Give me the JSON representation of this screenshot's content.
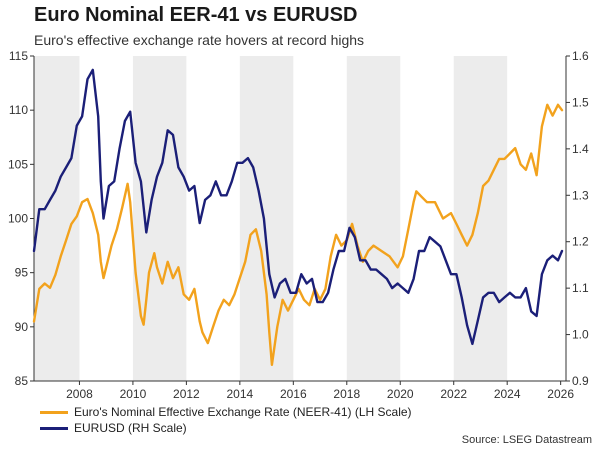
{
  "header": {
    "title": "Euro Nominal EER-41 vs EURUSD",
    "subtitle": "Euro's effective exchange rate hovers at record highs"
  },
  "source": "Source: LSEG Datastream",
  "colors": {
    "neer": "#f2a21d",
    "eurusd": "#1b1f78",
    "band": "#ececec",
    "axis": "#333333"
  },
  "chart_data": {
    "type": "line",
    "title": "Euro Nominal EER-41 vs EURUSD",
    "subtitle": "Euro's effective exchange rate hovers at record highs",
    "x_range": [
      2006.3,
      2026.2
    ],
    "x_ticks": [
      "2008",
      "2010",
      "2012",
      "2014",
      "2016",
      "2018",
      "2020",
      "2022",
      "2024",
      "2026"
    ],
    "x_tick_values": [
      2008,
      2010,
      2012,
      2014,
      2016,
      2018,
      2020,
      2022,
      2024,
      2026
    ],
    "shaded_year_bands": [
      [
        2006.3,
        2008
      ],
      [
        2010,
        2012
      ],
      [
        2014,
        2016
      ],
      [
        2018,
        2020
      ],
      [
        2022,
        2024
      ]
    ],
    "y_left": {
      "range": [
        85,
        115
      ],
      "ticks": [
        "85",
        "90",
        "95",
        "100",
        "105",
        "110",
        "115"
      ],
      "tick_values": [
        85,
        90,
        95,
        100,
        105,
        110,
        115
      ]
    },
    "y_right": {
      "range": [
        0.9,
        1.6
      ],
      "ticks": [
        "0.9",
        "1.0",
        "1.1",
        "1.2",
        "1.3",
        "1.4",
        "1.5",
        "1.6"
      ],
      "tick_values": [
        0.9,
        1.0,
        1.1,
        1.2,
        1.3,
        1.4,
        1.5,
        1.6
      ]
    },
    "series": [
      {
        "name": "Euro's Nominal Effective Exchange Rate (NEER-41) (LH Scale)",
        "axis": "left",
        "x": [
          2006.3,
          2006.5,
          2006.7,
          2006.9,
          2007.1,
          2007.3,
          2007.5,
          2007.7,
          2007.9,
          2008.1,
          2008.3,
          2008.5,
          2008.7,
          2008.8,
          2008.9,
          2009.0,
          2009.2,
          2009.4,
          2009.6,
          2009.8,
          2009.9,
          2010.1,
          2010.3,
          2010.4,
          2010.5,
          2010.6,
          2010.8,
          2010.9,
          2011.1,
          2011.3,
          2011.5,
          2011.7,
          2011.9,
          2012.1,
          2012.3,
          2012.5,
          2012.6,
          2012.8,
          2013.0,
          2013.2,
          2013.4,
          2013.6,
          2013.8,
          2014.0,
          2014.2,
          2014.4,
          2014.6,
          2014.8,
          2015.0,
          2015.1,
          2015.2,
          2015.4,
          2015.6,
          2015.8,
          2016.0,
          2016.2,
          2016.4,
          2016.6,
          2016.8,
          2017.0,
          2017.2,
          2017.4,
          2017.6,
          2017.8,
          2018.0,
          2018.2,
          2018.4,
          2018.6,
          2018.8,
          2019.0,
          2019.3,
          2019.6,
          2019.9,
          2020.1,
          2020.3,
          2020.5,
          2020.6,
          2020.8,
          2021.0,
          2021.3,
          2021.6,
          2021.9,
          2022.1,
          2022.3,
          2022.5,
          2022.7,
          2022.9,
          2023.1,
          2023.3,
          2023.5,
          2023.7,
          2023.9,
          2024.1,
          2024.3,
          2024.5,
          2024.7,
          2024.9,
          2025.1,
          2025.3,
          2025.5,
          2025.7,
          2025.9,
          2026.05
        ],
        "values": [
          90.5,
          93.5,
          94.0,
          93.6,
          94.8,
          96.5,
          98.0,
          99.5,
          100.2,
          101.5,
          101.8,
          100.5,
          98.5,
          96.0,
          94.5,
          95.5,
          97.5,
          99.0,
          101.0,
          103.2,
          101.5,
          95.0,
          91.0,
          90.2,
          92.5,
          95.0,
          96.8,
          95.5,
          94.0,
          96.0,
          94.5,
          95.5,
          93.0,
          92.5,
          93.5,
          90.5,
          89.5,
          88.5,
          90.0,
          91.5,
          92.5,
          92.0,
          93.0,
          94.5,
          96.0,
          98.5,
          99.0,
          97.0,
          93.0,
          89.5,
          86.5,
          90.0,
          92.5,
          91.5,
          92.5,
          93.5,
          92.5,
          92.0,
          93.5,
          92.5,
          93.5,
          96.5,
          98.5,
          97.5,
          98.0,
          99.5,
          97.5,
          96.0,
          97.0,
          97.5,
          97.0,
          96.5,
          95.5,
          96.5,
          99.0,
          101.5,
          102.5,
          102.0,
          101.5,
          101.5,
          100.0,
          100.5,
          99.5,
          98.5,
          97.5,
          98.5,
          100.5,
          103.0,
          103.5,
          104.5,
          105.5,
          105.5,
          106.0,
          106.5,
          105.0,
          104.5,
          106.0,
          104.0,
          108.5,
          110.5,
          109.5,
          110.5,
          110.0
        ]
      },
      {
        "name": "EURUSD (RH Scale)",
        "axis": "right",
        "x": [
          2006.3,
          2006.5,
          2006.7,
          2006.9,
          2007.1,
          2007.3,
          2007.5,
          2007.7,
          2007.9,
          2008.1,
          2008.3,
          2008.5,
          2008.7,
          2008.8,
          2008.9,
          2009.1,
          2009.3,
          2009.5,
          2009.7,
          2009.9,
          2010.1,
          2010.3,
          2010.5,
          2010.7,
          2010.9,
          2011.1,
          2011.3,
          2011.5,
          2011.7,
          2011.9,
          2012.1,
          2012.3,
          2012.5,
          2012.7,
          2012.9,
          2013.1,
          2013.3,
          2013.5,
          2013.7,
          2013.9,
          2014.1,
          2014.3,
          2014.5,
          2014.7,
          2014.9,
          2015.1,
          2015.3,
          2015.5,
          2015.7,
          2015.9,
          2016.1,
          2016.3,
          2016.5,
          2016.7,
          2016.9,
          2017.1,
          2017.3,
          2017.5,
          2017.7,
          2017.9,
          2018.1,
          2018.3,
          2018.5,
          2018.7,
          2018.9,
          2019.1,
          2019.3,
          2019.5,
          2019.7,
          2019.9,
          2020.1,
          2020.3,
          2020.5,
          2020.7,
          2020.9,
          2021.1,
          2021.3,
          2021.5,
          2021.7,
          2021.9,
          2022.1,
          2022.3,
          2022.5,
          2022.7,
          2022.9,
          2023.1,
          2023.3,
          2023.5,
          2023.7,
          2023.9,
          2024.1,
          2024.3,
          2024.5,
          2024.7,
          2024.9,
          2025.1,
          2025.3,
          2025.5,
          2025.7,
          2025.9,
          2026.05
        ],
        "values": [
          1.18,
          1.27,
          1.27,
          1.29,
          1.31,
          1.34,
          1.36,
          1.38,
          1.45,
          1.47,
          1.55,
          1.57,
          1.47,
          1.33,
          1.25,
          1.32,
          1.33,
          1.4,
          1.46,
          1.48,
          1.37,
          1.33,
          1.22,
          1.29,
          1.34,
          1.37,
          1.44,
          1.43,
          1.36,
          1.34,
          1.31,
          1.32,
          1.24,
          1.29,
          1.3,
          1.33,
          1.3,
          1.3,
          1.33,
          1.37,
          1.37,
          1.38,
          1.36,
          1.31,
          1.25,
          1.13,
          1.08,
          1.11,
          1.12,
          1.09,
          1.09,
          1.13,
          1.11,
          1.12,
          1.07,
          1.07,
          1.09,
          1.14,
          1.18,
          1.18,
          1.23,
          1.21,
          1.16,
          1.16,
          1.14,
          1.14,
          1.13,
          1.12,
          1.1,
          1.11,
          1.1,
          1.09,
          1.12,
          1.18,
          1.18,
          1.21,
          1.2,
          1.19,
          1.16,
          1.13,
          1.13,
          1.08,
          1.02,
          0.98,
          1.03,
          1.08,
          1.09,
          1.09,
          1.07,
          1.08,
          1.09,
          1.08,
          1.08,
          1.1,
          1.05,
          1.04,
          1.13,
          1.16,
          1.17,
          1.16,
          1.18
        ]
      }
    ],
    "grid": false,
    "legend_position": "bottom-left"
  }
}
